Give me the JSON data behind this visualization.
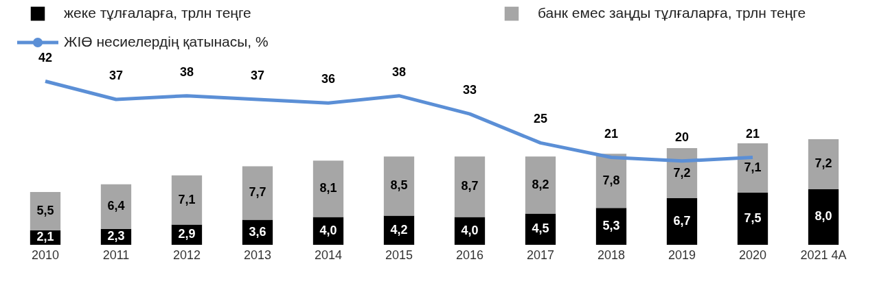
{
  "chart_data": {
    "type": "bar",
    "stacked": true,
    "categories": [
      "2010",
      "2011",
      "2012",
      "2013",
      "2014",
      "2015",
      "2016",
      "2017",
      "2018",
      "2019",
      "2020",
      "2021 4А"
    ],
    "series": [
      {
        "name": "жеке тұлғаларға, трлн теңге",
        "color": "#000000",
        "values": [
          2.1,
          2.3,
          2.9,
          3.6,
          4.0,
          4.2,
          4.0,
          4.5,
          5.3,
          6.7,
          7.5,
          8.0
        ],
        "value_labels": [
          "2,1",
          "2,3",
          "2,9",
          "3,6",
          "4,0",
          "4,2",
          "4,0",
          "4,5",
          "5,3",
          "6,7",
          "7,5",
          "8,0"
        ]
      },
      {
        "name": "банк емес заңды тұлғаларға, трлн теңге",
        "color": "#a6a6a6",
        "values": [
          5.5,
          6.4,
          7.1,
          7.7,
          8.1,
          8.5,
          8.7,
          8.2,
          7.8,
          7.2,
          7.1,
          7.2
        ],
        "value_labels": [
          "5,5",
          "6,4",
          "7,1",
          "7,7",
          "8,1",
          "8,5",
          "8,7",
          "8,2",
          "7,8",
          "7,2",
          "7,1",
          "7,2"
        ]
      },
      {
        "name": "ЖІӨ несиелердің қатынасы, %",
        "type": "line",
        "axis": "y2",
        "color": "#5b8fd6",
        "values": [
          42,
          37,
          38,
          37,
          36,
          38,
          33,
          25,
          21,
          20,
          21,
          null
        ],
        "value_labels": [
          "42",
          "37",
          "38",
          "37",
          "36",
          "38",
          "33",
          "25",
          "21",
          "20",
          "21",
          null
        ]
      }
    ],
    "tick_labels": "x",
    "legend": "top",
    "marker": "none"
  }
}
